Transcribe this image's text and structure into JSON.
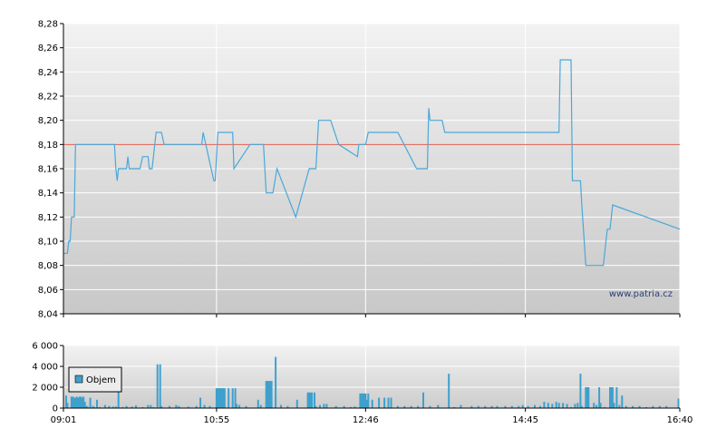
{
  "watermark": "www.patria.cz",
  "colors": {
    "price_line": "#4aa8d8",
    "reference_line": "#e05a4e",
    "volume_bar": "#3fa0cc",
    "grid": "#ffffff",
    "plot_bg_top": "#f2f2f2",
    "plot_bg_bottom": "#c8c8c8"
  },
  "chart_data": [
    {
      "type": "line",
      "title": "",
      "x_ticks": [
        "09:01",
        "10:55",
        "12:46",
        "14:45",
        "16:40"
      ],
      "x_range": [
        "09:01",
        "16:40"
      ],
      "ylim": [
        8.04,
        8.28
      ],
      "y_ticks": [
        "8,04",
        "8,06",
        "8,08",
        "8,10",
        "8,12",
        "8,14",
        "8,16",
        "8,18",
        "8,20",
        "8,22",
        "8,24",
        "8,26",
        "8,28"
      ],
      "grid": true,
      "reference_line": 8.18,
      "series": [
        {
          "points": [
            [
              "09:01",
              8.09
            ],
            [
              "09:04",
              8.09
            ],
            [
              "09:05",
              8.1
            ],
            [
              "09:06",
              8.1
            ],
            [
              "09:07",
              8.12
            ],
            [
              "09:09",
              8.12
            ],
            [
              "09:10",
              8.18
            ],
            [
              "09:39",
              8.18
            ],
            [
              "09:40",
              8.16
            ],
            [
              "09:41",
              8.15
            ],
            [
              "09:42",
              8.16
            ],
            [
              "09:48",
              8.16
            ],
            [
              "09:49",
              8.17
            ],
            [
              "09:50",
              8.16
            ],
            [
              "09:58",
              8.16
            ],
            [
              "10:00",
              8.17
            ],
            [
              "10:04",
              8.17
            ],
            [
              "10:05",
              8.16
            ],
            [
              "10:07",
              8.16
            ],
            [
              "10:10",
              8.19
            ],
            [
              "10:14",
              8.19
            ],
            [
              "10:16",
              8.18
            ],
            [
              "10:44",
              8.18
            ],
            [
              "10:45",
              8.19
            ],
            [
              "10:53",
              8.15
            ],
            [
              "10:54",
              8.15
            ],
            [
              "10:56",
              8.19
            ],
            [
              "11:07",
              8.19
            ],
            [
              "11:08",
              8.16
            ],
            [
              "11:20",
              8.18
            ],
            [
              "11:30",
              8.18
            ],
            [
              "11:32",
              8.14
            ],
            [
              "11:37",
              8.14
            ],
            [
              "11:40",
              8.16
            ],
            [
              "11:54",
              8.12
            ],
            [
              "12:04",
              8.16
            ],
            [
              "12:09",
              8.16
            ],
            [
              "12:11",
              8.2
            ],
            [
              "12:20",
              8.2
            ],
            [
              "12:26",
              8.18
            ],
            [
              "12:40",
              8.17
            ],
            [
              "12:41",
              8.18
            ],
            [
              "12:46",
              8.18
            ],
            [
              "12:48",
              8.19
            ],
            [
              "13:10",
              8.19
            ],
            [
              "13:24",
              8.16
            ],
            [
              "13:32",
              8.16
            ],
            [
              "13:33",
              8.21
            ],
            [
              "13:34",
              8.2
            ],
            [
              "13:43",
              8.2
            ],
            [
              "13:45",
              8.19
            ],
            [
              "15:10",
              8.19
            ],
            [
              "15:11",
              8.25
            ],
            [
              "15:19",
              8.25
            ],
            [
              "15:20",
              8.15
            ],
            [
              "15:26",
              8.15
            ],
            [
              "15:27",
              8.13
            ],
            [
              "15:30",
              8.08
            ],
            [
              "15:43",
              8.08
            ],
            [
              "15:46",
              8.11
            ],
            [
              "15:48",
              8.11
            ],
            [
              "15:50",
              8.13
            ],
            [
              "16:40",
              8.11
            ]
          ]
        }
      ]
    },
    {
      "type": "bar",
      "title": "",
      "ylim": [
        0,
        6000
      ],
      "y_ticks": [
        "0",
        "2 000",
        "4 000",
        "6 000"
      ],
      "x_ticks": [
        "09:01",
        "10:55",
        "12:46",
        "14:45",
        "16:40"
      ],
      "grid": true,
      "legend": {
        "position": "left",
        "entries": [
          "Objem"
        ]
      },
      "series": [
        {
          "name": "Objem",
          "points": [
            [
              "09:03",
              1200
            ],
            [
              "09:04",
              500
            ],
            [
              "09:07",
              1100
            ],
            [
              "09:08",
              1100
            ],
            [
              "09:09",
              1000
            ],
            [
              "09:10",
              1000
            ],
            [
              "09:11",
              1100
            ],
            [
              "09:12",
              1000
            ],
            [
              "09:13",
              1100
            ],
            [
              "09:14",
              1100
            ],
            [
              "09:15",
              1000
            ],
            [
              "09:16",
              1100
            ],
            [
              "09:17",
              600
            ],
            [
              "09:18",
              200
            ],
            [
              "09:19",
              150
            ],
            [
              "09:21",
              1000
            ],
            [
              "09:23",
              200
            ],
            [
              "09:24",
              100
            ],
            [
              "09:26",
              800
            ],
            [
              "09:28",
              100
            ],
            [
              "09:32",
              300
            ],
            [
              "09:35",
              200
            ],
            [
              "09:38",
              150
            ],
            [
              "09:40",
              150
            ],
            [
              "09:42",
              2400
            ],
            [
              "09:45",
              100
            ],
            [
              "09:48",
              200
            ],
            [
              "09:52",
              150
            ],
            [
              "09:55",
              250
            ],
            [
              "10:00",
              100
            ],
            [
              "10:04",
              300
            ],
            [
              "10:06",
              300
            ],
            [
              "10:08",
              100
            ],
            [
              "10:11",
              4200
            ],
            [
              "10:13",
              4200
            ],
            [
              "10:14",
              200
            ],
            [
              "10:20",
              200
            ],
            [
              "10:25",
              300
            ],
            [
              "10:27",
              200
            ],
            [
              "10:34",
              150
            ],
            [
              "10:40",
              200
            ],
            [
              "10:43",
              1000
            ],
            [
              "10:46",
              300
            ],
            [
              "10:50",
              200
            ],
            [
              "10:55",
              1900
            ],
            [
              "10:56",
              1900
            ],
            [
              "10:57",
              1900
            ],
            [
              "10:58",
              1900
            ],
            [
              "10:59",
              1900
            ],
            [
              "11:00",
              1900
            ],
            [
              "11:01",
              1900
            ],
            [
              "11:04",
              1900
            ],
            [
              "11:07",
              1900
            ],
            [
              "11:09",
              1900
            ],
            [
              "11:10",
              400
            ],
            [
              "11:12",
              300
            ],
            [
              "11:17",
              200
            ],
            [
              "11:26",
              800
            ],
            [
              "11:28",
              300
            ],
            [
              "11:32",
              2600
            ],
            [
              "11:33",
              2600
            ],
            [
              "11:34",
              2600
            ],
            [
              "11:35",
              2600
            ],
            [
              "11:36",
              2600
            ],
            [
              "11:39",
              4900
            ],
            [
              "11:43",
              300
            ],
            [
              "11:48",
              200
            ],
            [
              "11:55",
              800
            ],
            [
              "12:03",
              1500
            ],
            [
              "12:04",
              1500
            ],
            [
              "12:05",
              1500
            ],
            [
              "12:06",
              1500
            ],
            [
              "12:08",
              1500
            ],
            [
              "12:09",
              200
            ],
            [
              "12:12",
              300
            ],
            [
              "12:15",
              400
            ],
            [
              "12:17",
              400
            ],
            [
              "12:24",
              200
            ],
            [
              "12:30",
              200
            ],
            [
              "12:35",
              100
            ],
            [
              "12:38",
              150
            ],
            [
              "12:42",
              1400
            ],
            [
              "12:43",
              1400
            ],
            [
              "12:44",
              1400
            ],
            [
              "12:45",
              1400
            ],
            [
              "12:46",
              1400
            ],
            [
              "12:47",
              800
            ],
            [
              "12:48",
              1400
            ],
            [
              "12:51",
              800
            ],
            [
              "12:56",
              1000
            ],
            [
              "13:00",
              1000
            ],
            [
              "13:03",
              1000
            ],
            [
              "13:05",
              1000
            ],
            [
              "13:10",
              200
            ],
            [
              "13:15",
              200
            ],
            [
              "13:20",
              200
            ],
            [
              "13:25",
              200
            ],
            [
              "13:29",
              1500
            ],
            [
              "13:34",
              200
            ],
            [
              "13:40",
              300
            ],
            [
              "13:48",
              3300
            ],
            [
              "13:52",
              100
            ],
            [
              "13:57",
              300
            ],
            [
              "14:05",
              200
            ],
            [
              "14:10",
              200
            ],
            [
              "14:15",
              200
            ],
            [
              "14:20",
              200
            ],
            [
              "14:24",
              200
            ],
            [
              "14:30",
              200
            ],
            [
              "14:35",
              200
            ],
            [
              "14:40",
              200
            ],
            [
              "14:43",
              300
            ],
            [
              "14:47",
              200
            ],
            [
              "14:52",
              300
            ],
            [
              "14:56",
              200
            ],
            [
              "14:59",
              600
            ],
            [
              "15:02",
              500
            ],
            [
              "15:05",
              400
            ],
            [
              "15:08",
              600
            ],
            [
              "15:10",
              500
            ],
            [
              "15:13",
              500
            ],
            [
              "15:16",
              400
            ],
            [
              "15:19",
              100
            ],
            [
              "15:22",
              400
            ],
            [
              "15:24",
              500
            ],
            [
              "15:26",
              3300
            ],
            [
              "15:27",
              200
            ],
            [
              "15:30",
              2000
            ],
            [
              "15:31",
              2000
            ],
            [
              "15:32",
              2000
            ],
            [
              "15:36",
              500
            ],
            [
              "15:38",
              300
            ],
            [
              "15:40",
              2000
            ],
            [
              "15:41",
              500
            ],
            [
              "15:44",
              100
            ],
            [
              "15:48",
              2000
            ],
            [
              "15:49",
              2000
            ],
            [
              "15:50",
              2000
            ],
            [
              "15:51",
              500
            ],
            [
              "15:53",
              2000
            ],
            [
              "15:55",
              300
            ],
            [
              "15:57",
              1200
            ],
            [
              "16:00",
              200
            ],
            [
              "16:05",
              200
            ],
            [
              "16:10",
              200
            ],
            [
              "16:15",
              100
            ],
            [
              "16:20",
              200
            ],
            [
              "16:25",
              200
            ],
            [
              "16:30",
              200
            ],
            [
              "16:39",
              900
            ]
          ]
        }
      ]
    }
  ]
}
